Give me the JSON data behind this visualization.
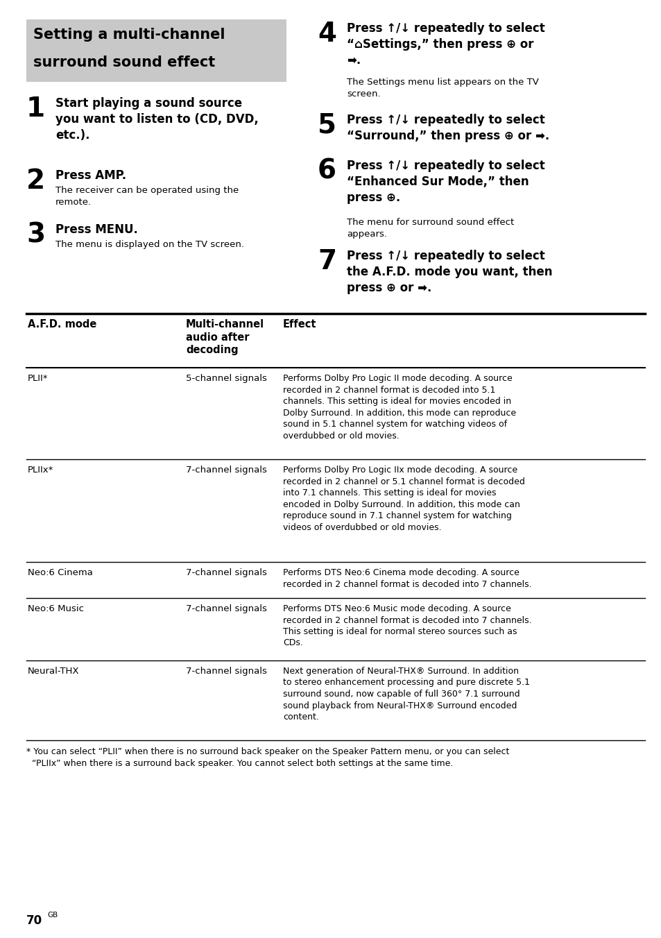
{
  "bg_color": "#ffffff",
  "header_bg": "#c8c8c8",
  "header_line1": "Setting a multi-channel",
  "header_line2": "surround sound effect",
  "footnote": "* You can select “PLII” when there is no surround back speaker on the Speaker Pattern menu, or you can select\n  “PLIIx” when there is a surround back speaker. You cannot select both settings at the same time.",
  "page_number": "70",
  "table_col_header": [
    "A.F.D. mode",
    "Multi-channel\naudio after\ndecoding",
    "Effect"
  ],
  "table_rows": [
    {
      "mode": "PLII*",
      "channel": "5-channel signals",
      "effect": "Performs Dolby Pro Logic II mode decoding. A source\nrecorded in 2 channel format is decoded into 5.1\nchannels. This setting is ideal for movies encoded in\nDolby Surround. In addition, this mode can reproduce\nsound in 5.1 channel system for watching videos of\noverdubbed or old movies."
    },
    {
      "mode": "PLIIx*",
      "channel": "7-channel signals",
      "effect": "Performs Dolby Pro Logic IIx mode decoding. A source\nrecorded in 2 channel or 5.1 channel format is decoded\ninto 7.1 channels. This setting is ideal for movies\nencoded in Dolby Surround. In addition, this mode can\nreproduce sound in 7.1 channel system for watching\nvideos of overdubbed or old movies."
    },
    {
      "mode": "Neo:6 Cinema",
      "channel": "7-channel signals",
      "effect": "Performs DTS Neo:6 Cinema mode decoding. A source\nrecorded in 2 channel format is decoded into 7 channels."
    },
    {
      "mode": "Neo:6 Music",
      "channel": "7-channel signals",
      "effect": "Performs DTS Neo:6 Music mode decoding. A source\nrecorded in 2 channel format is decoded into 7 channels.\nThis setting is ideal for normal stereo sources such as\nCDs."
    },
    {
      "mode": "Neural-THX",
      "channel": "7-channel signals",
      "effect": "Next generation of Neural-THX® Surround. In addition\nto stereo enhancement processing and pure discrete 5.1\nsurround sound, now capable of full 360° 7.1 surround\nsound playback from Neural-THX® Surround encoded\ncontent."
    }
  ]
}
